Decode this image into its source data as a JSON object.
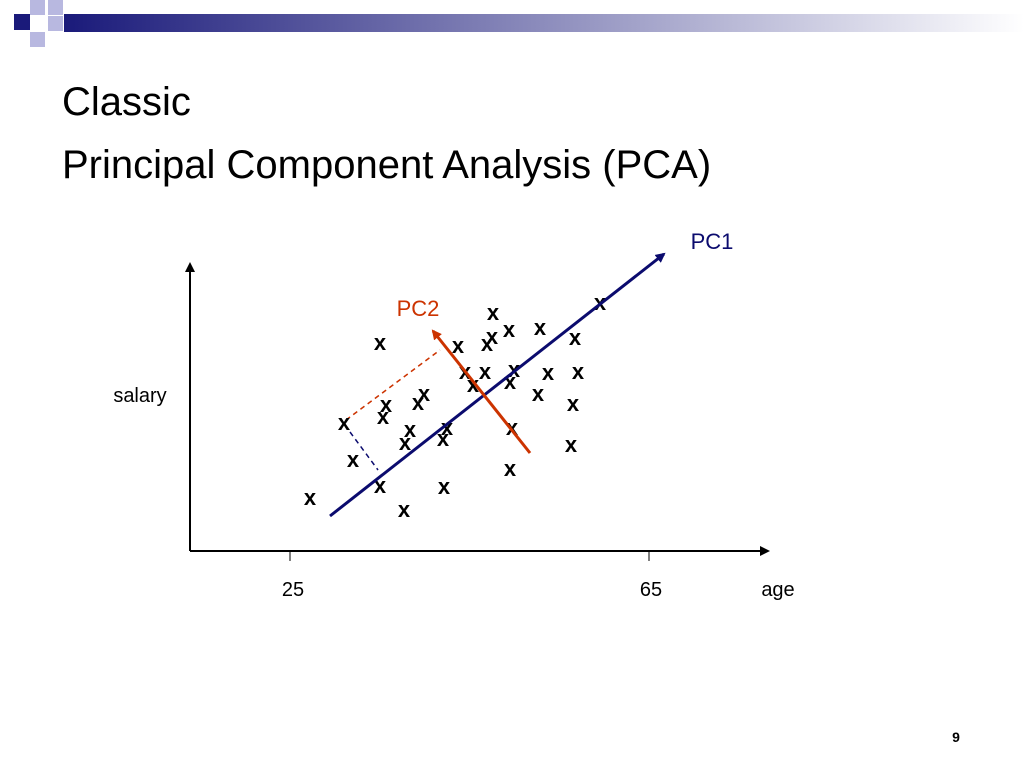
{
  "slide": {
    "title_lines": [
      "Classic",
      "Principal Component Analysis (PCA)"
    ],
    "y_axis_label": "salary",
    "x_axis_label": "age",
    "x_tick_labels": [
      "25",
      "65"
    ],
    "pc1_label": "PC1",
    "pc2_label": "PC2",
    "point_marker": "x",
    "page_number": "9"
  }
}
